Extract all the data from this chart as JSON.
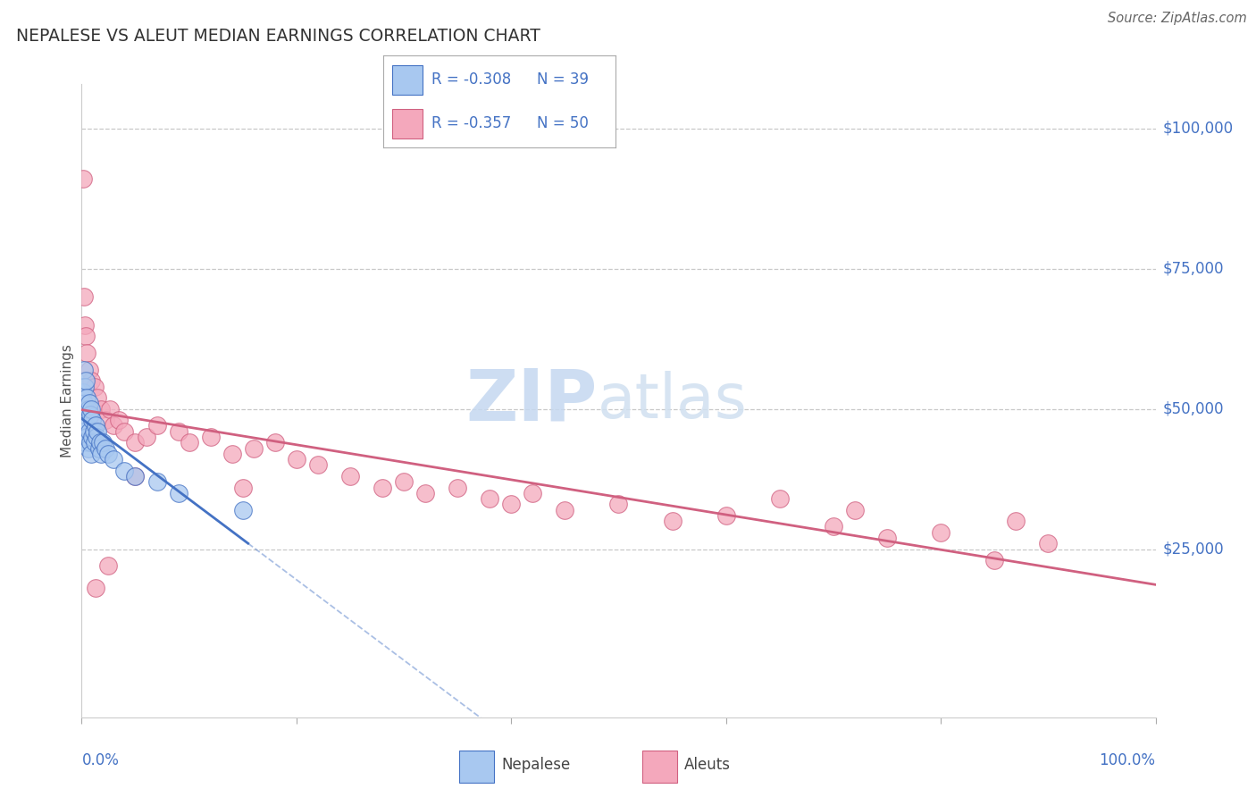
{
  "title": "NEPALESE VS ALEUT MEDIAN EARNINGS CORRELATION CHART",
  "source": "Source: ZipAtlas.com",
  "ylabel": "Median Earnings",
  "y_tick_labels": [
    "$25,000",
    "$50,000",
    "$75,000",
    "$100,000"
  ],
  "y_tick_values": [
    25000,
    50000,
    75000,
    100000
  ],
  "ylim": [
    -5000,
    108000
  ],
  "xlim": [
    0.0,
    1.0
  ],
  "legend_r1": "R = -0.308",
  "legend_n1": "N = 39",
  "legend_r2": "R = -0.357",
  "legend_n2": "N = 50",
  "nepalese_fill": "#a8c8f0",
  "aleut_fill": "#f4a8bc",
  "nepalese_edge": "#4472c4",
  "aleut_edge": "#d06080",
  "nepalese_line": "#4472c4",
  "aleut_line": "#d06080",
  "watermark_zip": "ZIP",
  "watermark_atlas": "atlas",
  "nepalese_x": [
    0.001,
    0.001,
    0.002,
    0.002,
    0.002,
    0.003,
    0.003,
    0.003,
    0.004,
    0.004,
    0.005,
    0.005,
    0.006,
    0.006,
    0.007,
    0.007,
    0.008,
    0.008,
    0.009,
    0.009,
    0.01,
    0.01,
    0.011,
    0.012,
    0.013,
    0.014,
    0.015,
    0.016,
    0.017,
    0.018,
    0.02,
    0.022,
    0.025,
    0.03,
    0.04,
    0.05,
    0.07,
    0.09,
    0.15
  ],
  "nepalese_y": [
    53000,
    48000,
    57000,
    51000,
    46000,
    54000,
    50000,
    44000,
    55000,
    47000,
    52000,
    45000,
    50000,
    43000,
    51000,
    46000,
    49000,
    44000,
    50000,
    42000,
    48000,
    45000,
    46000,
    44000,
    47000,
    45000,
    46000,
    43000,
    44000,
    42000,
    44000,
    43000,
    42000,
    41000,
    39000,
    38000,
    37000,
    35000,
    32000
  ],
  "aleut_x": [
    0.001,
    0.002,
    0.003,
    0.004,
    0.005,
    0.007,
    0.009,
    0.012,
    0.015,
    0.018,
    0.022,
    0.026,
    0.03,
    0.035,
    0.04,
    0.05,
    0.06,
    0.07,
    0.09,
    0.1,
    0.12,
    0.14,
    0.16,
    0.18,
    0.2,
    0.22,
    0.25,
    0.28,
    0.3,
    0.32,
    0.35,
    0.38,
    0.4,
    0.42,
    0.45,
    0.5,
    0.55,
    0.6,
    0.65,
    0.7,
    0.72,
    0.75,
    0.8,
    0.85,
    0.87,
    0.9,
    0.013,
    0.025,
    0.05,
    0.15
  ],
  "aleut_y": [
    91000,
    70000,
    65000,
    63000,
    60000,
    57000,
    55000,
    54000,
    52000,
    50000,
    48000,
    50000,
    47000,
    48000,
    46000,
    44000,
    45000,
    47000,
    46000,
    44000,
    45000,
    42000,
    43000,
    44000,
    41000,
    40000,
    38000,
    36000,
    37000,
    35000,
    36000,
    34000,
    33000,
    35000,
    32000,
    33000,
    30000,
    31000,
    34000,
    29000,
    32000,
    27000,
    28000,
    23000,
    30000,
    26000,
    18000,
    22000,
    38000,
    36000
  ]
}
